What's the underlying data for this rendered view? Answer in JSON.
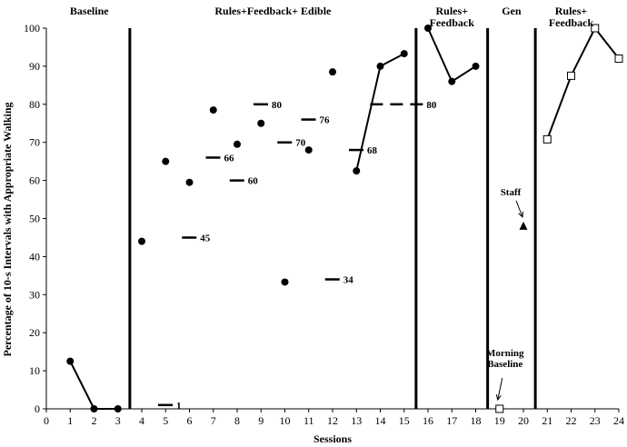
{
  "chart_data": {
    "type": "scatter",
    "xlabel": "Sessions",
    "ylabel": "Percentage of 10-s Intervals with Appropriate Walking",
    "xlim": [
      0,
      24
    ],
    "ylim": [
      0,
      100
    ],
    "x_ticks": [
      "0",
      "1",
      "2",
      "3",
      "4",
      "5",
      "6",
      "7",
      "8",
      "9",
      "10",
      "11",
      "12",
      "13",
      "14",
      "15",
      "16",
      "17",
      "18",
      "19",
      "20",
      "21",
      "22",
      "23",
      "24"
    ],
    "y_ticks": [
      "0",
      "10",
      "20",
      "30",
      "40",
      "50",
      "60",
      "70",
      "80",
      "90",
      "100"
    ],
    "grid": false,
    "phases": [
      {
        "label": "Baseline",
        "center_x": 1.8
      },
      {
        "label": "Rules+Feedback+ Edible",
        "center_x": 9.5
      },
      {
        "label": "Rules+\nFeedback",
        "center_x": 17.0
      },
      {
        "label": "Gen",
        "center_x": 19.5
      },
      {
        "label": "Rules+\nFeedback",
        "center_x": 22.0
      }
    ],
    "phase_lines_x": [
      3.5,
      15.5,
      18.5,
      20.5
    ],
    "series": [
      {
        "marker": "circle",
        "connected": true,
        "x": [
          1,
          2,
          3
        ],
        "y": [
          12.5,
          0,
          0
        ]
      },
      {
        "marker": "circle",
        "connected": false,
        "x": [
          4,
          5,
          6,
          7,
          8,
          9,
          10,
          11,
          12
        ],
        "y": [
          44,
          65,
          59.5,
          78.5,
          69.5,
          75,
          33.3,
          68,
          88.5
        ]
      },
      {
        "marker": "circle",
        "connected": true,
        "x": [
          13,
          14,
          15
        ],
        "y": [
          62.5,
          90,
          93.3
        ]
      },
      {
        "marker": "circle",
        "connected": true,
        "x": [
          16,
          17,
          18
        ],
        "y": [
          100,
          86,
          90
        ]
      },
      {
        "marker": "square",
        "connected": false,
        "x": [
          19
        ],
        "y": [
          0
        ]
      },
      {
        "marker": "triangle",
        "connected": false,
        "x": [
          20
        ],
        "y": [
          48
        ]
      },
      {
        "marker": "square",
        "connected": true,
        "x": [
          21,
          22,
          23,
          24
        ],
        "y": [
          70.8,
          87.5,
          100,
          92
        ]
      }
    ],
    "dash_labels": [
      {
        "x": 4,
        "y": 1,
        "label": "1"
      },
      {
        "x": 5,
        "y": 45,
        "label": "45"
      },
      {
        "x": 6,
        "y": 66,
        "label": "66"
      },
      {
        "x": 7,
        "y": 60,
        "label": "60"
      },
      {
        "x": 8,
        "y": 80,
        "label": "80"
      },
      {
        "x": 9,
        "y": 70,
        "label": "70"
      },
      {
        "x": 10,
        "y": 76,
        "label": "76"
      },
      {
        "x": 11,
        "y": 34,
        "label": "34"
      },
      {
        "x": 12,
        "y": 68,
        "label": "68"
      },
      {
        "x": 13.5,
        "y": 80,
        "label": "80",
        "wide": true
      }
    ],
    "annotations": [
      {
        "text": "Staff",
        "point_x": 20,
        "point_y": 48
      },
      {
        "text": "Morning\nBaseline",
        "point_x": 19,
        "point_y": 0
      }
    ]
  }
}
